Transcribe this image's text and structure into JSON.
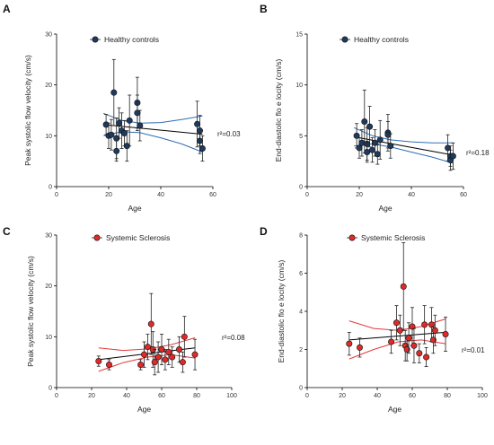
{
  "panel_labels": [
    "A",
    "B",
    "C",
    "D"
  ],
  "colors": {
    "healthy_marker": "#1f3a5f",
    "healthy_ci": "#2f6db3",
    "ssc_marker": "#e02a2a",
    "ssc_ci": "#e23a3a",
    "fit": "#000000"
  },
  "chart_data": [
    {
      "type": "scatter",
      "panel": "A",
      "xlabel": "Age",
      "ylabel": "Peak systolic flow velocity (cm/s)",
      "xlim": [
        0,
        60
      ],
      "ylim": [
        0,
        30
      ],
      "xticks": [
        0,
        20,
        40,
        60
      ],
      "yticks": [
        0,
        10,
        20,
        30
      ],
      "legend": "Healthy controls",
      "annotation": "r²=0.03",
      "series": [
        {
          "name": "Healthy controls",
          "points": [
            {
              "x": 19,
              "y": 12.2,
              "err": 2.0
            },
            {
              "x": 20,
              "y": 10.0,
              "err": 2.5
            },
            {
              "x": 21,
              "y": 10.2,
              "err": 3.0
            },
            {
              "x": 22,
              "y": 18.5,
              "err": 6.5
            },
            {
              "x": 23,
              "y": 9.5,
              "err": 4.0
            },
            {
              "x": 23,
              "y": 7.0,
              "err": 2.0
            },
            {
              "x": 24,
              "y": 12.5,
              "err": 3.0
            },
            {
              "x": 25,
              "y": 11.0,
              "err": 3.5
            },
            {
              "x": 26,
              "y": 10.5,
              "err": 2.5
            },
            {
              "x": 27,
              "y": 8.0,
              "err": 3.0
            },
            {
              "x": 28,
              "y": 13.0,
              "err": 5.0
            },
            {
              "x": 31,
              "y": 16.5,
              "err": 5.0
            },
            {
              "x": 31,
              "y": 14.5,
              "err": 3.5
            },
            {
              "x": 32,
              "y": 12.0,
              "err": 3.0
            },
            {
              "x": 54,
              "y": 12.3,
              "err": 4.5
            },
            {
              "x": 55,
              "y": 9.0,
              "err": 2.5
            },
            {
              "x": 55,
              "y": 11.0,
              "err": 3.0
            },
            {
              "x": 56,
              "y": 7.5,
              "err": 2.5
            }
          ]
        }
      ],
      "fit": {
        "x": [
          18,
          56
        ],
        "y": [
          12.2,
          10.3
        ]
      },
      "ci_upper": {
        "x": [
          18,
          25,
          32,
          40,
          48,
          56
        ],
        "y": [
          14.4,
          13.0,
          12.5,
          12.6,
          13.2,
          13.9
        ]
      },
      "ci_lower": {
        "x": [
          18,
          25,
          32,
          40,
          48,
          56
        ],
        "y": [
          10.0,
          10.8,
          10.6,
          9.6,
          8.4,
          6.8
        ]
      }
    },
    {
      "type": "scatter",
      "panel": "B",
      "xlabel": "Age",
      "ylabel": "End-diastolic flo  e locity (cm/s)",
      "xlim": [
        0,
        60
      ],
      "ylim": [
        0,
        15
      ],
      "xticks": [
        0,
        20,
        40,
        60
      ],
      "yticks": [
        0,
        5,
        10,
        15
      ],
      "legend": "Healthy controls",
      "annotation": "r²=0.18",
      "series": [
        {
          "name": "Healthy controls",
          "points": [
            {
              "x": 19,
              "y": 5.0,
              "err": 1.2
            },
            {
              "x": 20,
              "y": 3.8,
              "err": 1.0
            },
            {
              "x": 21,
              "y": 4.3,
              "err": 1.3
            },
            {
              "x": 22,
              "y": 6.4,
              "err": 3.1
            },
            {
              "x": 23,
              "y": 4.2,
              "err": 1.6
            },
            {
              "x": 23,
              "y": 3.4,
              "err": 1.0
            },
            {
              "x": 24,
              "y": 5.9,
              "err": 2.0
            },
            {
              "x": 25,
              "y": 3.6,
              "err": 1.2
            },
            {
              "x": 26,
              "y": 4.3,
              "err": 1.3
            },
            {
              "x": 27,
              "y": 3.2,
              "err": 1.0
            },
            {
              "x": 28,
              "y": 4.6,
              "err": 1.9
            },
            {
              "x": 31,
              "y": 5.3,
              "err": 1.8
            },
            {
              "x": 31,
              "y": 5.1,
              "err": 1.3
            },
            {
              "x": 32,
              "y": 4.0,
              "err": 1.2
            },
            {
              "x": 54,
              "y": 3.8,
              "err": 1.3
            },
            {
              "x": 55,
              "y": 3.0,
              "err": 1.0
            },
            {
              "x": 55,
              "y": 2.6,
              "err": 1.0
            },
            {
              "x": 56,
              "y": 3.0,
              "err": 1.3
            }
          ]
        }
      ],
      "fit": {
        "x": [
          18,
          56
        ],
        "y": [
          4.9,
          3.1
        ]
      },
      "ci_upper": {
        "x": [
          18,
          25,
          32,
          40,
          48,
          56
        ],
        "y": [
          5.8,
          5.0,
          4.6,
          4.4,
          4.3,
          4.3
        ]
      },
      "ci_lower": {
        "x": [
          18,
          25,
          32,
          40,
          48,
          56
        ],
        "y": [
          4.0,
          4.2,
          3.9,
          3.4,
          2.9,
          2.3
        ]
      }
    },
    {
      "type": "scatter",
      "panel": "C",
      "xlabel": "Age",
      "ylabel": "Peak systolic flow velocity (cm/s)",
      "xlim": [
        0,
        100
      ],
      "ylim": [
        0,
        30
      ],
      "xticks": [
        0,
        20,
        40,
        60,
        80,
        100
      ],
      "yticks": [
        0,
        10,
        20,
        30
      ],
      "legend": "Systemic Sclerosis",
      "annotation": "r²=0.08",
      "series": [
        {
          "name": "Systemic Sclerosis",
          "points": [
            {
              "x": 24,
              "y": 5.2,
              "err": 1.0
            },
            {
              "x": 30,
              "y": 4.5,
              "err": 1.0
            },
            {
              "x": 48,
              "y": 4.5,
              "err": 1.0
            },
            {
              "x": 50,
              "y": 6.5,
              "err": 2.5
            },
            {
              "x": 52,
              "y": 8.0,
              "err": 2.5
            },
            {
              "x": 54,
              "y": 12.5,
              "err": 6.0
            },
            {
              "x": 55,
              "y": 7.5,
              "err": 3.5
            },
            {
              "x": 56,
              "y": 5.0,
              "err": 2.5
            },
            {
              "x": 58,
              "y": 6.0,
              "err": 3.0
            },
            {
              "x": 60,
              "y": 7.5,
              "err": 3.0
            },
            {
              "x": 62,
              "y": 5.5,
              "err": 2.0
            },
            {
              "x": 64,
              "y": 7.0,
              "err": 2.5
            },
            {
              "x": 66,
              "y": 6.0,
              "err": 2.0
            },
            {
              "x": 70,
              "y": 7.5,
              "err": 2.5
            },
            {
              "x": 72,
              "y": 5.0,
              "err": 2.0
            },
            {
              "x": 73,
              "y": 10.0,
              "err": 4.0
            },
            {
              "x": 79,
              "y": 6.5,
              "err": 3.0
            }
          ]
        }
      ],
      "fit": {
        "x": [
          24,
          79
        ],
        "y": [
          5.5,
          7.8
        ]
      },
      "ci_upper": {
        "x": [
          24,
          38,
          52,
          65,
          79
        ],
        "y": [
          7.8,
          7.3,
          7.6,
          8.4,
          9.8
        ]
      },
      "ci_lower": {
        "x": [
          24,
          38,
          52,
          65,
          79
        ],
        "y": [
          3.2,
          4.9,
          6.0,
          6.5,
          5.8
        ]
      }
    },
    {
      "type": "scatter",
      "panel": "D",
      "xlabel": "Age",
      "ylabel": "End-diastolic flo  e locity (cm/s)",
      "xlim": [
        0,
        100
      ],
      "ylim": [
        0,
        8
      ],
      "xticks": [
        0,
        20,
        40,
        60,
        80,
        100
      ],
      "yticks": [
        0,
        2,
        4,
        6,
        8
      ],
      "legend": "Systemic Sclerosis",
      "annotation": "r²=0.01",
      "series": [
        {
          "name": "Systemic Sclerosis",
          "points": [
            {
              "x": 24,
              "y": 2.3,
              "err": 0.6
            },
            {
              "x": 30,
              "y": 2.1,
              "err": 0.5
            },
            {
              "x": 48,
              "y": 2.4,
              "err": 0.6
            },
            {
              "x": 51,
              "y": 3.4,
              "err": 0.9
            },
            {
              "x": 53,
              "y": 3.0,
              "err": 0.8
            },
            {
              "x": 55,
              "y": 5.3,
              "err": 2.3
            },
            {
              "x": 56,
              "y": 2.2,
              "err": 0.8
            },
            {
              "x": 57,
              "y": 2.0,
              "err": 0.6
            },
            {
              "x": 58,
              "y": 2.6,
              "err": 0.8
            },
            {
              "x": 60,
              "y": 3.2,
              "err": 1.0
            },
            {
              "x": 61,
              "y": 2.2,
              "err": 0.9
            },
            {
              "x": 64,
              "y": 1.8,
              "err": 0.5
            },
            {
              "x": 67,
              "y": 3.3,
              "err": 1.0
            },
            {
              "x": 68,
              "y": 1.6,
              "err": 0.5
            },
            {
              "x": 71,
              "y": 3.3,
              "err": 0.9
            },
            {
              "x": 72,
              "y": 2.5,
              "err": 0.7
            },
            {
              "x": 73,
              "y": 3.0,
              "err": 0.8
            },
            {
              "x": 79,
              "y": 2.8,
              "err": 0.9
            }
          ]
        }
      ],
      "fit": {
        "x": [
          24,
          79
        ],
        "y": [
          2.5,
          2.9
        ]
      },
      "ci_upper": {
        "x": [
          24,
          38,
          52,
          65,
          79
        ],
        "y": [
          3.5,
          3.1,
          3.0,
          3.2,
          3.6
        ]
      },
      "ci_lower": {
        "x": [
          24,
          38,
          52,
          65,
          79
        ],
        "y": [
          1.5,
          2.0,
          2.4,
          2.5,
          2.3
        ]
      }
    }
  ]
}
